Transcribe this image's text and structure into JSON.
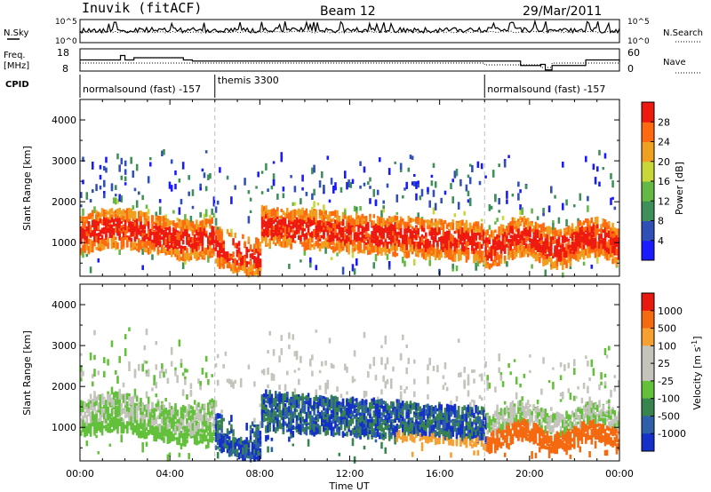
{
  "header": {
    "station": "Inuvik (fitACF)",
    "beam": "Beam 12",
    "date": "29/Mar/2011"
  },
  "chart_data": [
    {
      "type": "line",
      "panel": "noise",
      "left_label": "N.Sky",
      "right_label": "N.Search",
      "left_ticks": [
        "10^5",
        "10^0"
      ],
      "right_ticks": [
        "10^5",
        "10^0"
      ],
      "series": [
        {
          "name": "N.Sky",
          "style": "solid"
        },
        {
          "name": "N.Search",
          "style": "dotted"
        }
      ]
    },
    {
      "type": "line",
      "panel": "frequency",
      "left_label_line1": "Freq.",
      "left_label_line2": "[MHz]",
      "right_label": "Nave",
      "left_ticks": [
        "18",
        "8"
      ],
      "right_ticks": [
        "60",
        "0"
      ],
      "series": [
        {
          "name": "Freq.",
          "style": "solid",
          "x": [
            0,
            1.4,
            1.8,
            2.0,
            2.4,
            4.6,
            5.0,
            18.0,
            19.6,
            20.5,
            20.7,
            21.0,
            22.5,
            23.5,
            24.0
          ],
          "y": [
            13,
            13,
            15,
            13,
            14,
            13,
            12.5,
            12.5,
            10.5,
            11,
            8.5,
            10.5,
            13,
            13,
            12
          ]
        },
        {
          "name": "Nave",
          "style": "dotted"
        }
      ]
    },
    {
      "type": "table",
      "panel": "cpid",
      "label": "CPID",
      "segments": [
        {
          "start": 0,
          "end": 6,
          "label": "normalsound (fast) -157"
        },
        {
          "start": 6,
          "end": 18,
          "label": "themis 3300"
        },
        {
          "start": 18,
          "end": 24,
          "label": "normalsound (fast) -157"
        }
      ]
    },
    {
      "type": "heatmap",
      "panel": "power",
      "ylabel": "Slant Range [km]",
      "ylim": [
        180,
        4500
      ],
      "yticks": [
        1000,
        2000,
        3000,
        4000
      ],
      "xlim": [
        0,
        24
      ],
      "colorbar": {
        "label": "Power [dB]",
        "ticks": [
          "4",
          "8",
          "12",
          "16",
          "20",
          "24",
          "28"
        ],
        "colors": [
          "#1a1aff",
          "#3050b8",
          "#3f8f5a",
          "#64b844",
          "#c8d638",
          "#f0a020",
          "#ff6a10",
          "#ee1a10"
        ]
      }
    },
    {
      "type": "heatmap",
      "panel": "velocity",
      "ylabel": "Slant Range [km]",
      "ylim": [
        180,
        4500
      ],
      "yticks": [
        1000,
        2000,
        3000,
        4000
      ],
      "xlim": [
        0,
        24
      ],
      "xticks": [
        "00:00",
        "04:00",
        "08:00",
        "12:00",
        "16:00",
        "20:00",
        "00:00"
      ],
      "xlabel": "Time UT",
      "colorbar": {
        "label": "Velocity [m s",
        "label_sup": "-1",
        "label_end": "]",
        "ticks": [
          "1000",
          "500",
          "100",
          "25",
          "-25",
          "-100",
          "-500",
          "-1000"
        ],
        "colors": [
          "#1530c8",
          "#2f5fa8",
          "#37844f",
          "#62c03a",
          "#c4c4bc",
          "#c4c4bc",
          "#f5a030",
          "#f56a10",
          "#e81a10"
        ]
      }
    }
  ]
}
